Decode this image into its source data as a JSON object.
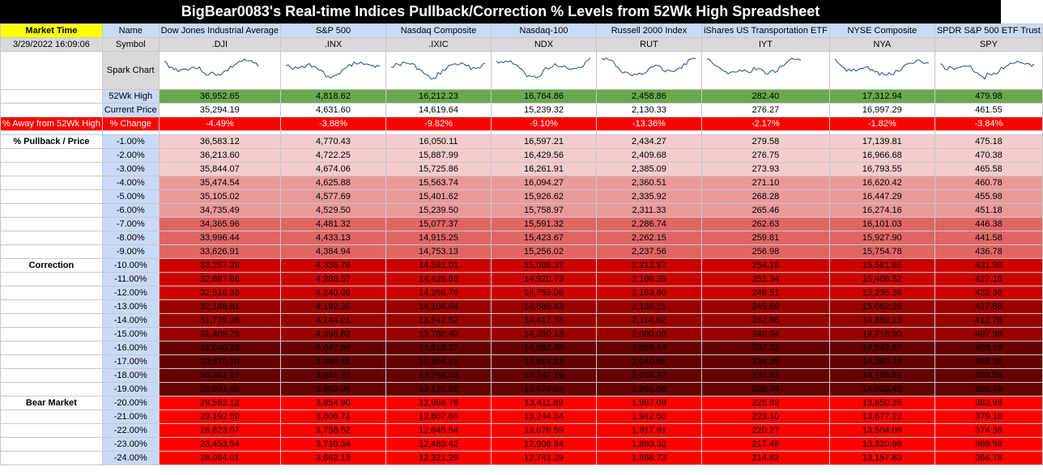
{
  "title": "BigBear0083's Real-time Indices Pullback/Correction % Levels from 52Wk High Spreadsheet",
  "header": {
    "market_time_label": "Market Time",
    "name_label": "Name",
    "market_time": "3/29/2022 16:09:06",
    "symbol_label": "Symbol",
    "spark_label": "Spark Chart",
    "high_label": "52Wk High",
    "current_label": "Current Price",
    "away_label": "% Away from 52Wk High",
    "change_label": "% Change",
    "pullback_label": "% Pullback / Price"
  },
  "colors": {
    "yellow": "#ffff00",
    "blue": "#c9daf8",
    "green": "#6aa84f",
    "red": "#ff0000",
    "spark": "#1f4e79"
  },
  "indices": [
    {
      "name": "Dow Jones Industrial Average",
      "symbol": ".DJI",
      "high": "36,952.65",
      "current": "35,294.19",
      "change": "-4.49%"
    },
    {
      "name": "S&P 500",
      "symbol": ".INX",
      "high": "4,818.62",
      "current": "4,631.60",
      "change": "-3.88%"
    },
    {
      "name": "Nasdaq Composite",
      "symbol": ".IXIC",
      "high": "16,212.23",
      "current": "14,619.64",
      "change": "-9.82%"
    },
    {
      "name": "Nasdaq-100",
      "symbol": "NDX",
      "high": "16,764.86",
      "current": "15,239.32",
      "change": "-9.10%"
    },
    {
      "name": "Russell 2000 Index",
      "symbol": "RUT",
      "high": "2,458.86",
      "current": "2,130.33",
      "change": "-13.36%"
    },
    {
      "name": "iShares US Transportation ETF",
      "symbol": "IYT",
      "high": "282.40",
      "current": "276.27",
      "change": "-2.17%"
    },
    {
      "name": "NYSE Composite",
      "symbol": "NYA",
      "high": "17,312.94",
      "current": "16,997.29",
      "change": "-1.82%"
    },
    {
      "name": "SPDR S&P 500 ETF Trust",
      "symbol": "SPY",
      "high": "479.98",
      "current": "461.55",
      "change": "-3.84%"
    }
  ],
  "rows": [
    {
      "label": "",
      "pct": "-1.00%",
      "band": 1,
      "values": [
        "36,583.12",
        "4,770.43",
        "16,050.11",
        "16,597.21",
        "2,434.27",
        "279.58",
        "17,139.81",
        "475.18"
      ]
    },
    {
      "label": "",
      "pct": "-2.00%",
      "band": 1,
      "values": [
        "36,213.60",
        "4,722.25",
        "15,887.99",
        "16,429.56",
        "2,409.68",
        "276.75",
        "16,966.68",
        "470.38"
      ]
    },
    {
      "label": "",
      "pct": "-3.00%",
      "band": 1,
      "values": [
        "35,844.07",
        "4,674.06",
        "15,725.86",
        "16,261.91",
        "2,385.09",
        "273.93",
        "16,793.55",
        "465.58"
      ]
    },
    {
      "label": "",
      "pct": "-4.00%",
      "band": 2,
      "values": [
        "35,474.54",
        "4,625.88",
        "15,563.74",
        "16,094.27",
        "2,360.51",
        "271.10",
        "16,620.42",
        "460.78"
      ]
    },
    {
      "label": "",
      "pct": "-5.00%",
      "band": 2,
      "values": [
        "35,105.02",
        "4,577.69",
        "15,401.62",
        "15,926.62",
        "2,335.92",
        "268.28",
        "16,447.29",
        "455.98"
      ]
    },
    {
      "label": "",
      "pct": "-6.00%",
      "band": 2,
      "values": [
        "34,735.49",
        "4,529.50",
        "15,239.50",
        "15,758.97",
        "2,311.33",
        "265.46",
        "16,274.16",
        "451.18"
      ]
    },
    {
      "label": "",
      "pct": "-7.00%",
      "band": 3,
      "values": [
        "34,365.96",
        "4,481.32",
        "15,077.37",
        "15,591.32",
        "2,286.74",
        "262.63",
        "16,101.03",
        "446.38"
      ]
    },
    {
      "label": "",
      "pct": "-8.00%",
      "band": 3,
      "values": [
        "33,996.44",
        "4,433.13",
        "14,915.25",
        "15,423.67",
        "2,262.15",
        "259.81",
        "15,927.90",
        "441.58"
      ]
    },
    {
      "label": "",
      "pct": "-9.00%",
      "band": 3,
      "values": [
        "33,626.91",
        "4,384.94",
        "14,753.13",
        "15,256.02",
        "2,237.56",
        "256.98",
        "15,754.78",
        "436.78"
      ]
    },
    {
      "label": "Correction",
      "pct": "-10.00%",
      "band": 4,
      "values": [
        "33,257.39",
        "4,336.76",
        "14,591.01",
        "15,088.37",
        "2,212.97",
        "254.16",
        "15,581.65",
        "431.98"
      ]
    },
    {
      "label": "",
      "pct": "-11.00%",
      "band": 4,
      "values": [
        "32,887.86",
        "4,288.57",
        "14,428.88",
        "14,920.73",
        "2,188.39",
        "251.34",
        "15,408.52",
        "427.18"
      ]
    },
    {
      "label": "",
      "pct": "-12.00%",
      "band": 4,
      "values": [
        "32,518.33",
        "4,240.39",
        "14,266.76",
        "14,753.08",
        "2,163.80",
        "248.51",
        "15,235.39",
        "422.38"
      ]
    },
    {
      "label": "",
      "pct": "-13.00%",
      "band": 5,
      "values": [
        "32,148.81",
        "4,192.20",
        "14,104.64",
        "14,585.43",
        "2,139.21",
        "245.69",
        "15,062.26",
        "417.58"
      ]
    },
    {
      "label": "",
      "pct": "-14.00%",
      "band": 5,
      "values": [
        "31,779.28",
        "4,144.01",
        "13,942.52",
        "14,417.78",
        "2,114.62",
        "242.86",
        "14,889.13",
        "412.78"
      ]
    },
    {
      "label": "",
      "pct": "-15.00%",
      "band": 5,
      "values": [
        "31,409.75",
        "4,095.83",
        "13,780.40",
        "14,250.13",
        "2,090.03",
        "240.04",
        "14,716.00",
        "407.98"
      ]
    },
    {
      "label": "",
      "pct": "-16.00%",
      "band": 6,
      "values": [
        "31,040.23",
        "4,047.64",
        "13,618.27",
        "14,082.48",
        "2,065.44",
        "237.22",
        "14,542.87",
        "403.18"
      ]
    },
    {
      "label": "",
      "pct": "-17.00%",
      "band": 6,
      "values": [
        "30,670.70",
        "3,999.45",
        "13,456.15",
        "13,914.83",
        "2,040.85",
        "234.39",
        "14,369.74",
        "398.38"
      ]
    },
    {
      "label": "",
      "pct": "-18.00%",
      "band": 6,
      "values": [
        "30,301.17",
        "3,951.27",
        "13,294.03",
        "13,747.19",
        "2,016.27",
        "231.57",
        "14,196.61",
        "393.58"
      ]
    },
    {
      "label": "",
      "pct": "-19.00%",
      "band": 6,
      "values": [
        "29,931.65",
        "3,903.08",
        "13,131.91",
        "13,579.54",
        "1,991.68",
        "228.74",
        "14,023.48",
        "388.78"
      ]
    },
    {
      "label": "Bear Market",
      "pct": "-20.00%",
      "band": 7,
      "values": [
        "29,562.12",
        "3,854.90",
        "12,969.78",
        "13,411.89",
        "1,967.09",
        "225.92",
        "13,850.35",
        "383.98"
      ]
    },
    {
      "label": "",
      "pct": "-21.00%",
      "band": 7,
      "values": [
        "29,192.59",
        "3,806.71",
        "12,807.66",
        "13,244.24",
        "1,942.50",
        "223.10",
        "13,677.22",
        "379.18"
      ]
    },
    {
      "label": "",
      "pct": "-22.00%",
      "band": 7,
      "values": [
        "28,823.07",
        "3,758.52",
        "12,645.54",
        "13,076.59",
        "1,917.91",
        "220.27",
        "13,504.09",
        "374.38"
      ]
    },
    {
      "label": "",
      "pct": "-23.00%",
      "band": 7,
      "values": [
        "28,453.54",
        "3,710.34",
        "12,483.42",
        "12,908.94",
        "1,893.32",
        "217.45",
        "13,330.96",
        "369.58"
      ]
    },
    {
      "label": "",
      "pct": "-24.00%",
      "band": 7,
      "values": [
        "28,084.01",
        "3,662.15",
        "12,321.29",
        "12,741.29",
        "1,868.73",
        "214.62",
        "13,157.83",
        "364.78"
      ]
    }
  ]
}
